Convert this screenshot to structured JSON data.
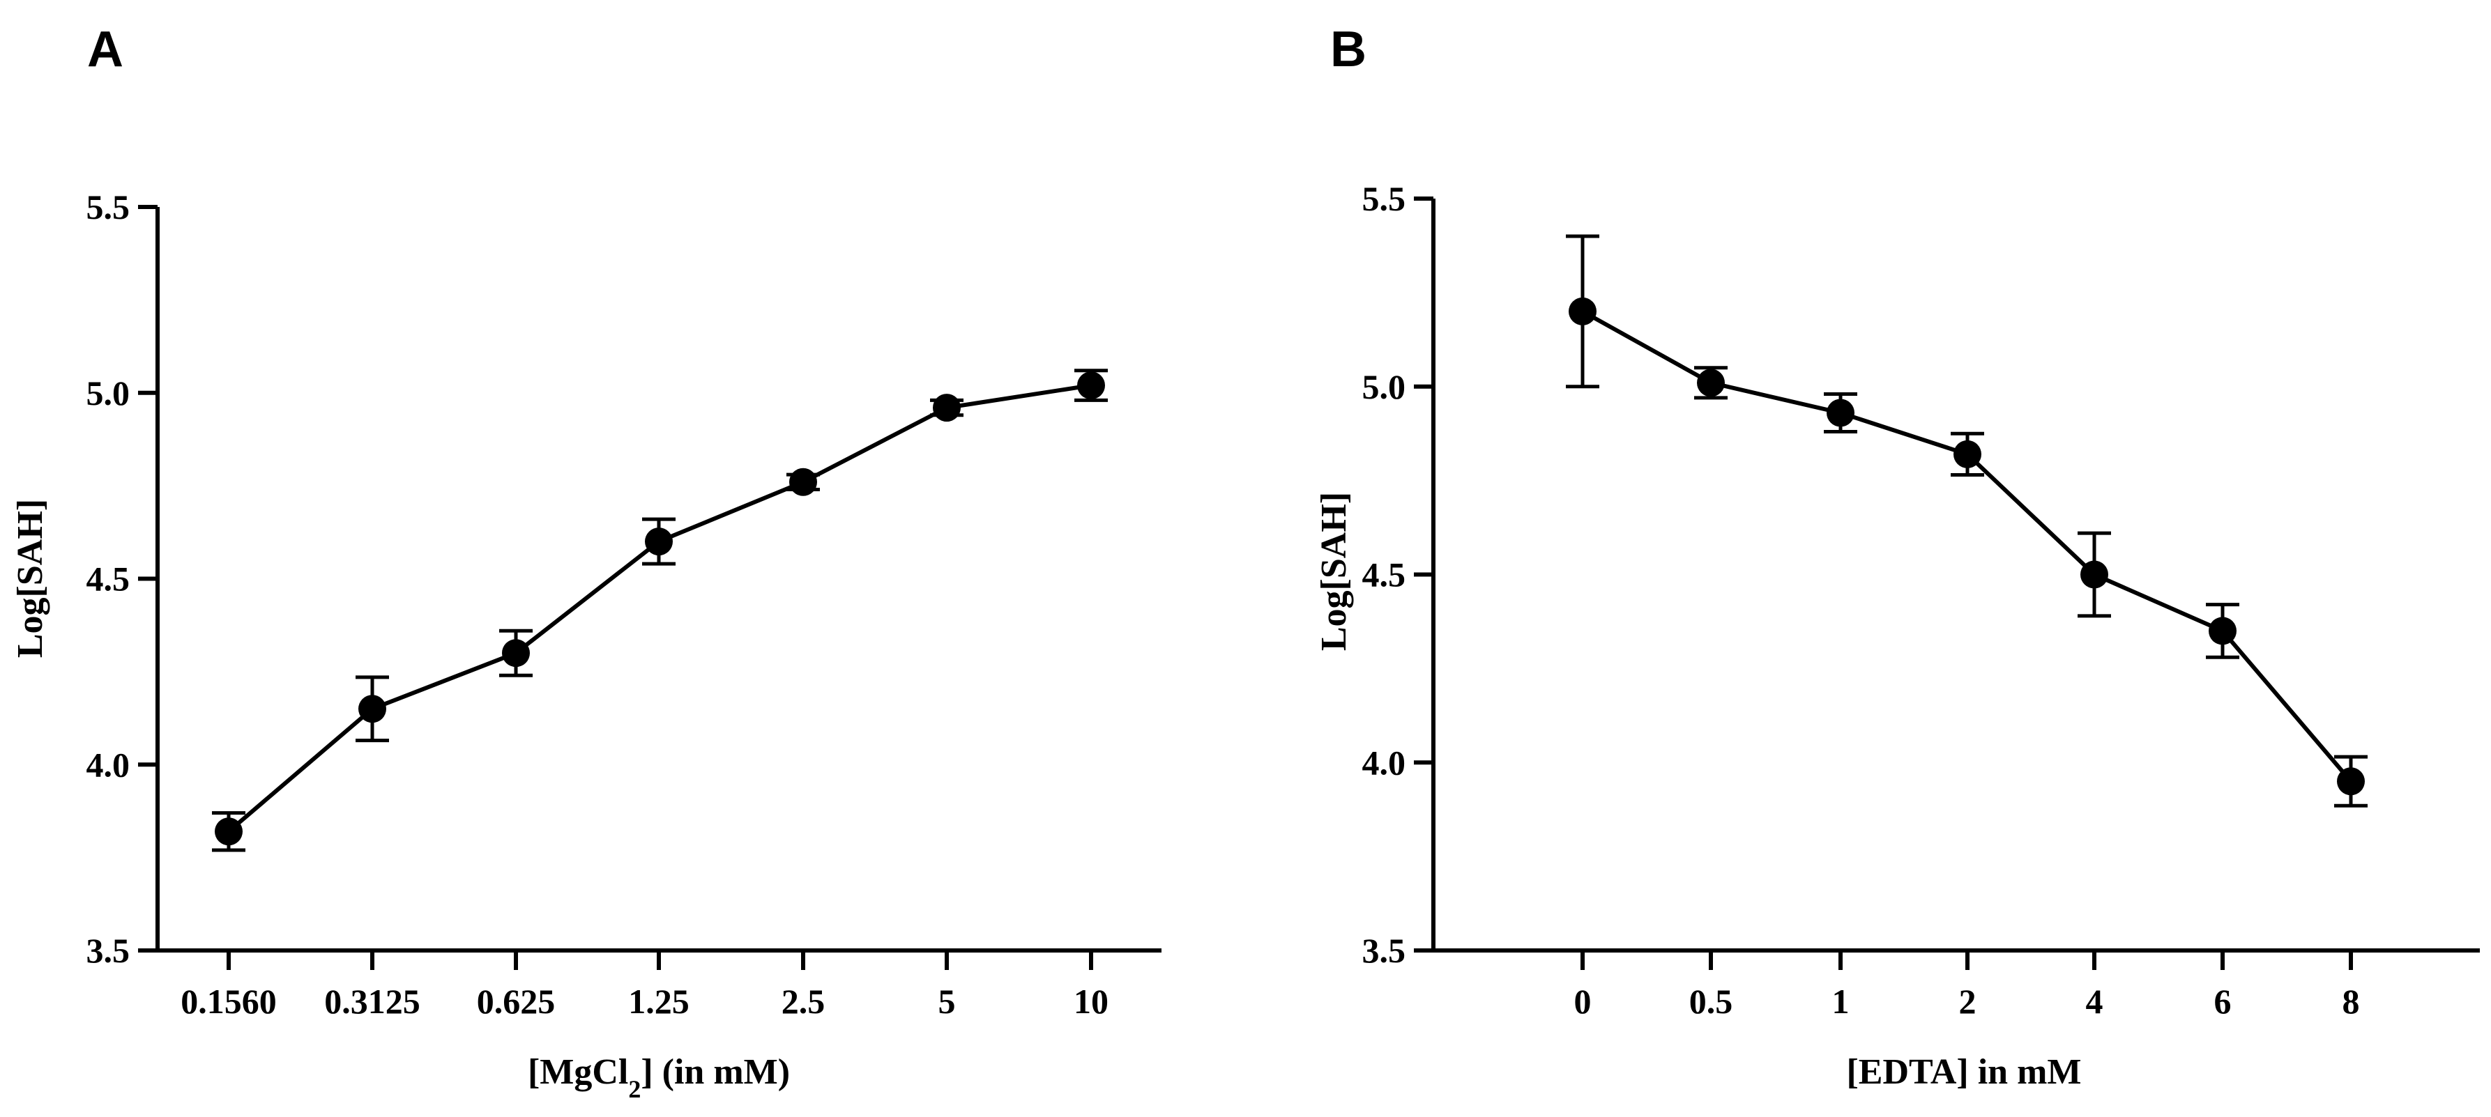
{
  "chart_data": [
    {
      "panel": "A",
      "type": "line",
      "title": "",
      "xlabel_main": "[MgCl",
      "xlabel_sub": "2",
      "xlabel_tail": "] (in mM)",
      "ylabel": "Log[SAH]",
      "categories": [
        "0.1560",
        "0.3125",
        "0.625",
        "1.25",
        "2.5",
        "5",
        "10"
      ],
      "values": [
        3.82,
        4.15,
        4.3,
        4.6,
        4.76,
        4.96,
        5.02
      ],
      "errors": [
        0.05,
        0.085,
        0.06,
        0.06,
        0.02,
        0.02,
        0.04
      ],
      "ylim": [
        3.5,
        5.5
      ],
      "yticks": [
        "3.5",
        "4.0",
        "4.5",
        "5.0",
        "5.5"
      ],
      "grid": false,
      "marker": "circle",
      "color": "#000000"
    },
    {
      "panel": "B",
      "type": "line",
      "title": "",
      "xlabel": "[EDTA] in mM",
      "ylabel": "Log[SAH]",
      "categories": [
        "0",
        "0.5",
        "1",
        "2",
        "4",
        "6",
        "8"
      ],
      "values": [
        5.2,
        5.01,
        4.93,
        4.82,
        4.5,
        4.35,
        3.95
      ],
      "errors": [
        0.2,
        0.04,
        0.05,
        0.055,
        0.11,
        0.07,
        0.065
      ],
      "ylim": [
        3.5,
        5.5
      ],
      "yticks": [
        "3.5",
        "4.0",
        "4.5",
        "5.0",
        "5.5"
      ],
      "grid": false,
      "marker": "circle",
      "color": "#000000"
    }
  ]
}
